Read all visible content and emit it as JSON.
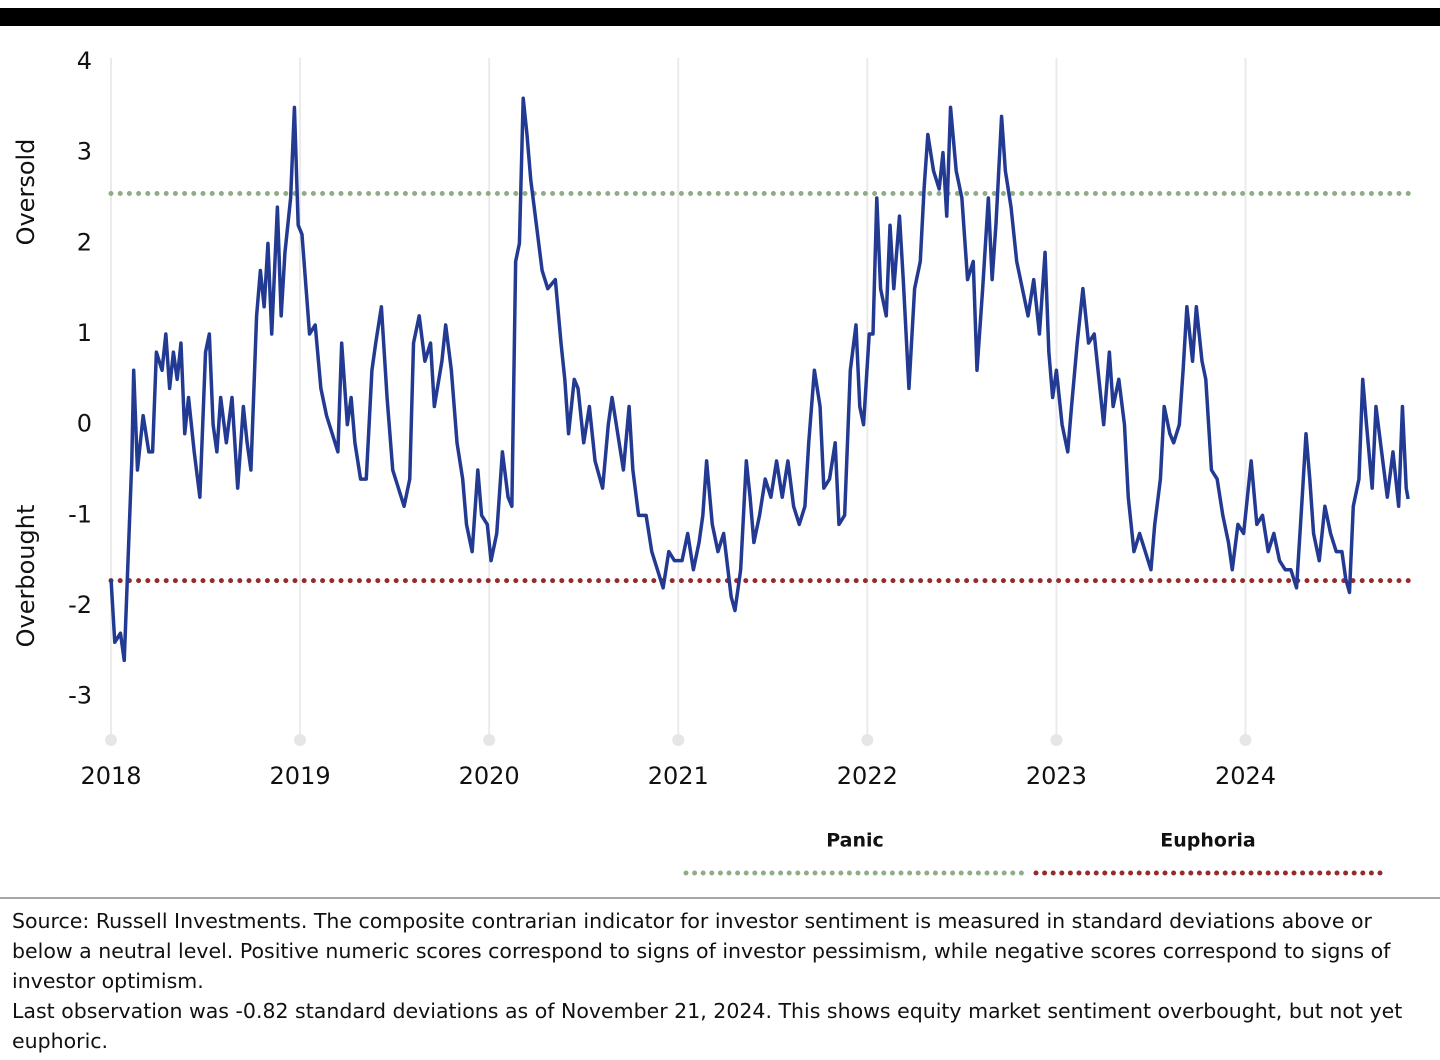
{
  "chart_data": {
    "type": "line",
    "ylabel_upper": "Oversold",
    "ylabel_lower": "Overbought",
    "xlim": [
      2018,
      2024.87
    ],
    "xticks": [
      2018,
      2019,
      2020,
      2021,
      2022,
      2023,
      2024
    ],
    "ylim": [
      -3.5,
      4
    ],
    "yticks": [
      -3,
      -2,
      -1,
      0,
      1,
      2,
      3,
      4
    ],
    "grid": true,
    "reference_lines": [
      {
        "label": "Panic",
        "value": 2.55,
        "color": "#8fac86"
      },
      {
        "label": "Euphoria",
        "value": -1.72,
        "color": "#962a2c"
      }
    ],
    "x": [
      2018.0,
      2018.02,
      2018.05,
      2018.07,
      2018.09,
      2018.11,
      2018.12,
      2018.14,
      2018.17,
      2018.2,
      2018.22,
      2018.24,
      2018.27,
      2018.29,
      2018.31,
      2018.33,
      2018.35,
      2018.37,
      2018.39,
      2018.41,
      2018.44,
      2018.47,
      2018.5,
      2018.52,
      2018.54,
      2018.56,
      2018.58,
      2018.61,
      2018.64,
      2018.67,
      2018.7,
      2018.72,
      2018.74,
      2018.77,
      2018.79,
      2018.81,
      2018.83,
      2018.85,
      2018.88,
      2018.9,
      2018.92,
      2018.95,
      2018.97,
      2018.99,
      2019.01,
      2019.05,
      2019.08,
      2019.11,
      2019.14,
      2019.17,
      2019.2,
      2019.22,
      2019.25,
      2019.27,
      2019.29,
      2019.32,
      2019.35,
      2019.38,
      2019.4,
      2019.43,
      2019.46,
      2019.49,
      2019.52,
      2019.55,
      2019.58,
      2019.6,
      2019.63,
      2019.66,
      2019.69,
      2019.71,
      2019.75,
      2019.77,
      2019.8,
      2019.83,
      2019.86,
      2019.88,
      2019.91,
      2019.94,
      2019.96,
      2019.99,
      2020.01,
      2020.04,
      2020.07,
      2020.1,
      2020.12,
      2020.14,
      2020.16,
      2020.18,
      2020.2,
      2020.22,
      2020.25,
      2020.28,
      2020.31,
      2020.35,
      2020.38,
      2020.4,
      2020.42,
      2020.45,
      2020.47,
      2020.5,
      2020.53,
      2020.56,
      2020.6,
      2020.63,
      2020.65,
      2020.68,
      2020.71,
      2020.74,
      2020.76,
      2020.79,
      2020.83,
      2020.86,
      2020.89,
      2020.92,
      2020.95,
      2020.98,
      2021.02,
      2021.05,
      2021.08,
      2021.11,
      2021.13,
      2021.15,
      2021.18,
      2021.21,
      2021.24,
      2021.28,
      2021.3,
      2021.33,
      2021.36,
      2021.38,
      2021.4,
      2021.43,
      2021.46,
      2021.49,
      2021.52,
      2021.55,
      2021.58,
      2021.61,
      2021.64,
      2021.67,
      2021.69,
      2021.72,
      2021.75,
      2021.77,
      2021.8,
      2021.83,
      2021.85,
      2021.88,
      2021.91,
      2021.94,
      2021.96,
      2021.98,
      2022.01,
      2022.03,
      2022.05,
      2022.07,
      2022.1,
      2022.12,
      2022.14,
      2022.17,
      2022.19,
      2022.22,
      2022.25,
      2022.28,
      2022.3,
      2022.32,
      2022.35,
      2022.38,
      2022.4,
      2022.42,
      2022.44,
      2022.47,
      2022.5,
      2022.53,
      2022.56,
      2022.58,
      2022.61,
      2022.64,
      2022.66,
      2022.68,
      2022.71,
      2022.73,
      2022.76,
      2022.79,
      2022.82,
      2022.85,
      2022.88,
      2022.91,
      2022.94,
      2022.96,
      2022.98,
      2023.0,
      2023.03,
      2023.06,
      2023.08,
      2023.11,
      2023.14,
      2023.17,
      2023.2,
      2023.22,
      2023.25,
      2023.28,
      2023.3,
      2023.33,
      2023.36,
      2023.38,
      2023.41,
      2023.44,
      2023.47,
      2023.5,
      2023.52,
      2023.55,
      2023.57,
      2023.6,
      2023.62,
      2023.65,
      2023.67,
      2023.69,
      2023.72,
      2023.74,
      2023.77,
      2023.79,
      2023.82,
      2023.85,
      2023.88,
      2023.91,
      2023.93,
      2023.96,
      2023.99,
      2024.01,
      2024.03,
      2024.06,
      2024.09,
      2024.12,
      2024.15,
      2024.18,
      2024.21,
      2024.24,
      2024.27,
      2024.3,
      2024.32,
      2024.34,
      2024.36,
      2024.39,
      2024.42,
      2024.45,
      2024.48,
      2024.51,
      2024.53,
      2024.55,
      2024.57,
      2024.6,
      2024.62,
      2024.64,
      2024.67,
      2024.69,
      2024.72,
      2024.75,
      2024.78,
      2024.81,
      2024.83,
      2024.85,
      2024.86
    ],
    "series": [
      {
        "color": "#233a93",
        "values": [
          -1.7,
          -2.4,
          -2.3,
          -2.6,
          -1.5,
          -0.4,
          0.6,
          -0.5,
          0.1,
          -0.3,
          -0.3,
          0.8,
          0.6,
          1.0,
          0.4,
          0.8,
          0.5,
          0.9,
          -0.1,
          0.3,
          -0.3,
          -0.8,
          0.8,
          1.0,
          0.0,
          -0.3,
          0.3,
          -0.2,
          0.3,
          -0.7,
          0.2,
          -0.2,
          -0.5,
          1.2,
          1.7,
          1.3,
          2.0,
          1.0,
          2.4,
          1.2,
          1.9,
          2.5,
          3.5,
          2.2,
          2.1,
          1.0,
          1.1,
          0.4,
          0.1,
          -0.1,
          -0.3,
          0.9,
          0.0,
          0.3,
          -0.2,
          -0.6,
          -0.6,
          0.6,
          0.9,
          1.3,
          0.3,
          -0.5,
          -0.7,
          -0.9,
          -0.6,
          0.9,
          1.2,
          0.7,
          0.9,
          0.2,
          0.7,
          1.1,
          0.6,
          -0.2,
          -0.6,
          -1.1,
          -1.4,
          -0.5,
          -1.0,
          -1.1,
          -1.5,
          -1.2,
          -0.3,
          -0.8,
          -0.9,
          1.8,
          2.0,
          3.6,
          3.2,
          2.7,
          2.2,
          1.7,
          1.5,
          1.6,
          0.9,
          0.5,
          -0.1,
          0.5,
          0.4,
          -0.2,
          0.2,
          -0.4,
          -0.7,
          0.0,
          0.3,
          -0.1,
          -0.5,
          0.2,
          -0.5,
          -1.0,
          -1.0,
          -1.4,
          -1.6,
          -1.8,
          -1.4,
          -1.5,
          -1.5,
          -1.2,
          -1.6,
          -1.3,
          -1.0,
          -0.4,
          -1.1,
          -1.4,
          -1.2,
          -1.9,
          -2.05,
          -1.6,
          -0.4,
          -0.8,
          -1.3,
          -1.0,
          -0.6,
          -0.8,
          -0.4,
          -0.8,
          -0.4,
          -0.9,
          -1.1,
          -0.9,
          -0.2,
          0.6,
          0.2,
          -0.7,
          -0.6,
          -0.2,
          -1.1,
          -1.0,
          0.6,
          1.1,
          0.2,
          0.0,
          1.0,
          1.0,
          2.5,
          1.5,
          1.2,
          2.2,
          1.5,
          2.3,
          1.6,
          0.4,
          1.5,
          1.8,
          2.6,
          3.2,
          2.8,
          2.6,
          3.0,
          2.3,
          3.5,
          2.8,
          2.5,
          1.6,
          1.8,
          0.6,
          1.5,
          2.5,
          1.6,
          2.2,
          3.4,
          2.8,
          2.4,
          1.8,
          1.5,
          1.2,
          1.6,
          1.0,
          1.9,
          0.8,
          0.3,
          0.6,
          0.0,
          -0.3,
          0.2,
          0.9,
          1.5,
          0.9,
          1.0,
          0.6,
          0.0,
          0.8,
          0.2,
          0.5,
          0.0,
          -0.8,
          -1.4,
          -1.2,
          -1.4,
          -1.6,
          -1.1,
          -0.6,
          0.2,
          -0.1,
          -0.2,
          0.0,
          0.6,
          1.3,
          0.7,
          1.3,
          0.7,
          0.5,
          -0.5,
          -0.6,
          -1.0,
          -1.3,
          -1.6,
          -1.1,
          -1.2,
          -0.8,
          -0.4,
          -1.1,
          -1.0,
          -1.4,
          -1.2,
          -1.5,
          -1.6,
          -1.6,
          -1.8,
          -0.8,
          -0.1,
          -0.6,
          -1.2,
          -1.5,
          -0.9,
          -1.2,
          -1.4,
          -1.4,
          -1.7,
          -1.85,
          -0.9,
          -0.6,
          0.5,
          0.0,
          -0.7,
          0.2,
          -0.3,
          -0.8,
          -0.3,
          -0.9,
          0.2,
          -0.7,
          -0.82
        ]
      }
    ]
  },
  "notes": [
    "Source: Russell Investments. The composite contrarian indicator for investor sentiment is measured in standard deviations above or below a neutral level. Positive numeric scores correspond to signs of investor pessimism, while negative scores correspond to signs of investor optimism.",
    "Last observation was -0.82 standard deviations as of November 21, 2024. This shows equity market sentiment overbought, but not yet euphoric."
  ]
}
